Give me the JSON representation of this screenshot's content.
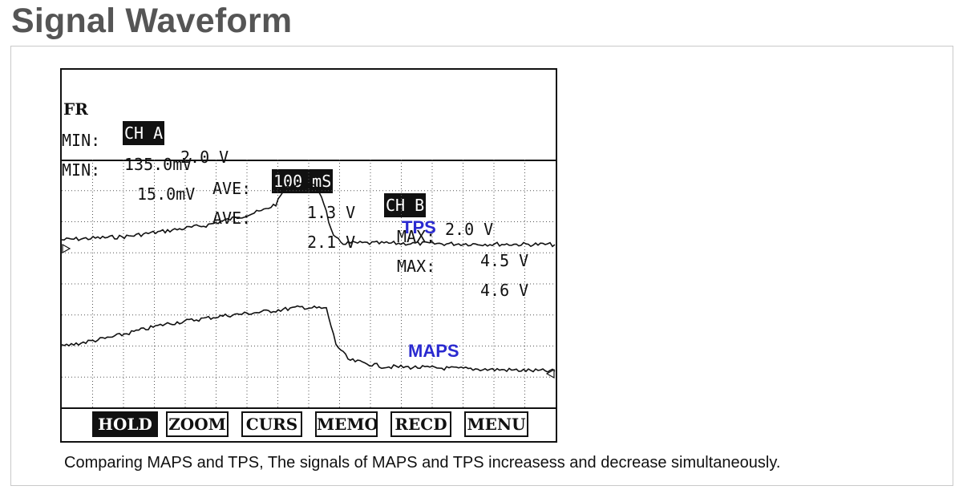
{
  "title": "Signal Waveform",
  "scope": {
    "header": {
      "fr": "FR",
      "cha": "CH A",
      "cha_volt": "2.0 V",
      "timebase": "100 mS",
      "chb": "CH B",
      "chb_volt": "2.0 V"
    },
    "stats": [
      {
        "min_label": "MIN:",
        "min": "135.0mV",
        "ave_label": "AVE:",
        "ave": "1.3 V",
        "max_label": "MAX:",
        "max": "4.5 V"
      },
      {
        "min_label": "MIN:",
        "min": "15.0mV",
        "ave_label": "AVE:",
        "ave": "2.1 V",
        "max_label": "MAX:",
        "max": "4.6 V"
      }
    ],
    "traces": {
      "tps": {
        "label": "TPS",
        "color": "#2a2ad0"
      },
      "maps": {
        "label": "MAPS",
        "color": "#2a2ad0"
      }
    },
    "buttons": [
      {
        "label": "HOLD",
        "active": true
      },
      {
        "label": "ZOOM",
        "active": false
      },
      {
        "label": "CURS",
        "active": false
      },
      {
        "label": "MEMO",
        "active": false
      },
      {
        "label": "RECD",
        "active": false
      },
      {
        "label": "MENU",
        "active": false
      }
    ]
  },
  "caption": "Comparing MAPS and TPS, The signals of MAPS and TPS increasess and decrease simultaneously."
}
